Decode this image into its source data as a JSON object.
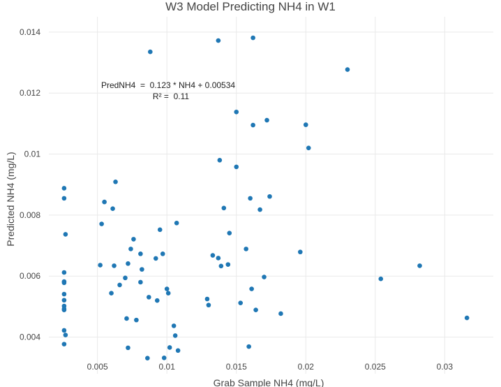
{
  "chart_data": {
    "type": "scatter",
    "title": "W3 Model Predicting NH4 in W1",
    "xlabel": "Grab Sample NH4 (mg/L)",
    "ylabel": "Predicted NH4 (mg/L)",
    "xlim": [
      0.0015,
      0.0335
    ],
    "ylim": [
      0.0028,
      0.0145
    ],
    "x_ticks": [
      0.005,
      0.01,
      0.015,
      0.02,
      0.025,
      0.03
    ],
    "x_tick_labels": [
      "0.005",
      "0.01",
      "0.015",
      "0.02",
      "0.025",
      "0.03"
    ],
    "y_ticks": [
      0.004,
      0.006,
      0.008,
      0.01,
      0.012,
      0.014
    ],
    "y_tick_labels": [
      "0.004",
      "0.006",
      "0.008",
      "0.01",
      "0.012",
      "0.014"
    ],
    "grid": true,
    "annotation": {
      "line1": "PredNH4  =  0.123 * NH4 + 0.00534",
      "line2": "R² =  0.11"
    },
    "marker_color": "#1f77b4",
    "points": [
      [
        0.0026,
        0.00888
      ],
      [
        0.0026,
        0.00855
      ],
      [
        0.0027,
        0.00737
      ],
      [
        0.0026,
        0.00612
      ],
      [
        0.0026,
        0.00582
      ],
      [
        0.0026,
        0.00578
      ],
      [
        0.0026,
        0.00541
      ],
      [
        0.0026,
        0.00521
      ],
      [
        0.0026,
        0.00502
      ],
      [
        0.0026,
        0.00493
      ],
      [
        0.0026,
        0.00489
      ],
      [
        0.0026,
        0.00422
      ],
      [
        0.0027,
        0.00407
      ],
      [
        0.0026,
        0.00377
      ],
      [
        0.0052,
        0.00636
      ],
      [
        0.0053,
        0.00771
      ],
      [
        0.0055,
        0.00843
      ],
      [
        0.006,
        0.00544
      ],
      [
        0.0061,
        0.00821
      ],
      [
        0.0062,
        0.00634
      ],
      [
        0.0063,
        0.00909
      ],
      [
        0.0066,
        0.00571
      ],
      [
        0.007,
        0.00594
      ],
      [
        0.0071,
        0.00461
      ],
      [
        0.0072,
        0.00641
      ],
      [
        0.0072,
        0.00365
      ],
      [
        0.0074,
        0.00689
      ],
      [
        0.0076,
        0.00721
      ],
      [
        0.0078,
        0.00456
      ],
      [
        0.0081,
        0.00673
      ],
      [
        0.0082,
        0.00622
      ],
      [
        0.0081,
        0.0058
      ],
      [
        0.0086,
        0.00331
      ],
      [
        0.0087,
        0.00531
      ],
      [
        0.0088,
        0.01335
      ],
      [
        0.0092,
        0.00658
      ],
      [
        0.0093,
        0.0052
      ],
      [
        0.0095,
        0.00752
      ],
      [
        0.0097,
        0.00673
      ],
      [
        0.0098,
        0.00332
      ],
      [
        0.01,
        0.00558
      ],
      [
        0.0101,
        0.00544
      ],
      [
        0.0102,
        0.00366
      ],
      [
        0.0105,
        0.00437
      ],
      [
        0.0106,
        0.00405
      ],
      [
        0.0107,
        0.00774
      ],
      [
        0.0108,
        0.00356
      ],
      [
        0.0129,
        0.00525
      ],
      [
        0.013,
        0.00505
      ],
      [
        0.0133,
        0.00668
      ],
      [
        0.0137,
        0.01372
      ],
      [
        0.0137,
        0.00659
      ],
      [
        0.0138,
        0.0098
      ],
      [
        0.0139,
        0.00633
      ],
      [
        0.0141,
        0.00823
      ],
      [
        0.0144,
        0.00638
      ],
      [
        0.0145,
        0.00741
      ],
      [
        0.015,
        0.01138
      ],
      [
        0.015,
        0.00958
      ],
      [
        0.0153,
        0.00512
      ],
      [
        0.0157,
        0.00689
      ],
      [
        0.0159,
        0.00369
      ],
      [
        0.016,
        0.00855
      ],
      [
        0.0161,
        0.00558
      ],
      [
        0.0162,
        0.01381
      ],
      [
        0.0162,
        0.01095
      ],
      [
        0.0164,
        0.00489
      ],
      [
        0.0167,
        0.00818
      ],
      [
        0.017,
        0.00597
      ],
      [
        0.0172,
        0.01111
      ],
      [
        0.0174,
        0.00861
      ],
      [
        0.0182,
        0.00477
      ],
      [
        0.0196,
        0.00679
      ],
      [
        0.02,
        0.01096
      ],
      [
        0.0202,
        0.0102
      ],
      [
        0.023,
        0.01277
      ],
      [
        0.0254,
        0.00591
      ],
      [
        0.0282,
        0.00634
      ],
      [
        0.0316,
        0.00463
      ]
    ]
  }
}
